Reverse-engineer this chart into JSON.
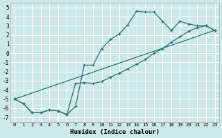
{
  "xlabel": "Humidex (Indice chaleur)",
  "bg_color": "#cce8e8",
  "line_color": "#2d7070",
  "grid_color": "#ffffff",
  "xlim": [
    -0.5,
    23.5
  ],
  "ylim": [
    -7.5,
    5.5
  ],
  "xticks": [
    0,
    1,
    2,
    3,
    4,
    5,
    6,
    7,
    8,
    9,
    10,
    11,
    12,
    13,
    14,
    15,
    16,
    17,
    18,
    19,
    20,
    21,
    22,
    23
  ],
  "yticks": [
    -7,
    -6,
    -5,
    -4,
    -3,
    -2,
    -1,
    0,
    1,
    2,
    3,
    4,
    5
  ],
  "line1_x": [
    0,
    1,
    2,
    3,
    4,
    5,
    6,
    7,
    8,
    9,
    10,
    11,
    12,
    13,
    14,
    15,
    16,
    17,
    18,
    19,
    20,
    21,
    22,
    23
  ],
  "line1_y": [
    -5.0,
    -5.5,
    -6.5,
    -6.5,
    -6.2,
    -6.3,
    -6.7,
    -5.8,
    -1.3,
    -1.3,
    0.5,
    1.5,
    2.1,
    3.1,
    4.6,
    4.5,
    4.5,
    3.5,
    2.5,
    3.5,
    3.2,
    3.0,
    3.0,
    2.5
  ],
  "line2_x": [
    0,
    1,
    2,
    3,
    4,
    5,
    6,
    7,
    8,
    9,
    10,
    11,
    12,
    13,
    14,
    15,
    16,
    17,
    18,
    19,
    20,
    21,
    22,
    23
  ],
  "line2_y": [
    -5.0,
    -5.5,
    -6.5,
    -6.5,
    -6.2,
    -6.3,
    -6.7,
    -3.3,
    -3.2,
    -3.3,
    -3.1,
    -2.6,
    -2.2,
    -1.7,
    -1.2,
    -0.7,
    0.0,
    0.5,
    1.2,
    1.8,
    2.4,
    2.8,
    3.0,
    2.5
  ],
  "line3_x": [
    0,
    23
  ],
  "line3_y": [
    -5.0,
    2.5
  ]
}
